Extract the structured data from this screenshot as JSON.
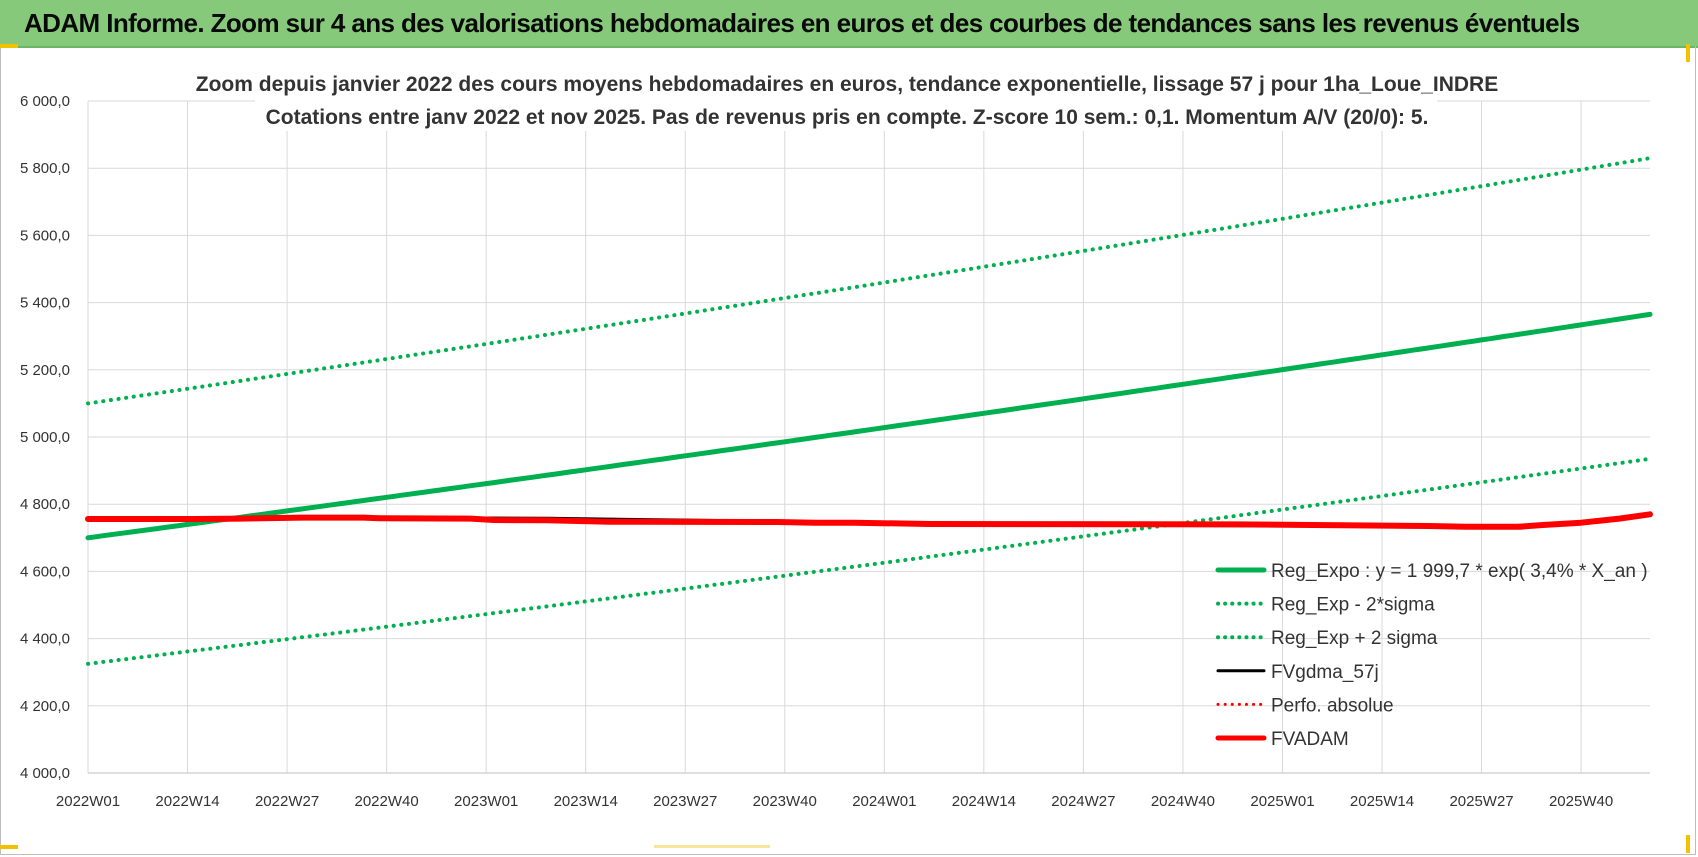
{
  "banner": {
    "title": "ADAM Informe. Zoom sur 4 ans des valorisations hebdomadaires en euros et des courbes de tendances sans les revenus éventuels"
  },
  "chart_data": {
    "type": "line",
    "title_line1": "Zoom depuis janvier 2022 des cours moyens hebdomadaires en euros, tendance exponentielle, lissage 57 j pour 1ha_Loue_INDRE",
    "title_line2": "Cotations entre janv 2022 et nov 2025. Pas de revenus pris en compte. Z-score 10 sem.: 0,1. Momentum A/V (20/0): 5.",
    "x_ticks": [
      "2022W01",
      "2022W14",
      "2022W27",
      "2022W40",
      "2023W01",
      "2023W14",
      "2023W27",
      "2023W40",
      "2024W01",
      "2024W14",
      "2024W27",
      "2024W40",
      "2025W01",
      "2025W14",
      "2025W27",
      "2025W40"
    ],
    "x_tick_step_weeks": 13,
    "n_weeks": 205,
    "ylim": [
      4000,
      6000
    ],
    "y_ticks": [
      4000,
      4200,
      4400,
      4600,
      4800,
      5000,
      5200,
      5400,
      5600,
      5800,
      6000
    ],
    "y_tick_labels": [
      "4 000,0",
      "4 200,0",
      "4 400,0",
      "4 600,0",
      "4 800,0",
      "5 000,0",
      "5 200,0",
      "5 400,0",
      "5 600,0",
      "5 800,0",
      "6 000,0"
    ],
    "grid": true,
    "legend_position": "bottom-right",
    "series": [
      {
        "name": "Reg_Expo : y = 1 999,7 * exp( 3,4% *  X_an )",
        "color": "#00b050",
        "style": "solid",
        "width": 5,
        "start": 4700,
        "end": 5365
      },
      {
        "name": "Reg_Exp - 2*sigma",
        "color": "#00b050",
        "style": "dotted",
        "width": 4,
        "start": 4325,
        "end": 4935
      },
      {
        "name": "Reg_Exp + 2 sigma",
        "color": "#00b050",
        "style": "dotted",
        "width": 4,
        "start": 5100,
        "end": 5830
      },
      {
        "name": "FVgdma_57j",
        "color": "#000000",
        "style": "solid",
        "width": 3,
        "points": [
          [
            0,
            4756
          ],
          [
            20,
            4758
          ],
          [
            40,
            4760
          ],
          [
            60,
            4758
          ],
          [
            80,
            4752
          ],
          [
            100,
            4745
          ],
          [
            120,
            4740
          ],
          [
            140,
            4737
          ],
          [
            160,
            4735
          ],
          [
            170,
            4733
          ],
          [
            180,
            4732
          ],
          [
            185,
            4735
          ],
          [
            190,
            4740
          ],
          [
            195,
            4748
          ],
          [
            200,
            4760
          ],
          [
            204,
            4770
          ]
        ]
      },
      {
        "name": "Perfo. absolue",
        "color": "#ff0000",
        "style": "dotted",
        "width": 3,
        "points": []
      },
      {
        "name": "FVADAM",
        "color": "#ff0000",
        "style": "solid",
        "width": 6,
        "points": [
          [
            0,
            4756
          ],
          [
            14,
            4756
          ],
          [
            20,
            4757
          ],
          [
            28,
            4760
          ],
          [
            36,
            4760
          ],
          [
            38,
            4758
          ],
          [
            50,
            4757
          ],
          [
            53,
            4753
          ],
          [
            60,
            4752
          ],
          [
            68,
            4748
          ],
          [
            90,
            4747
          ],
          [
            95,
            4745
          ],
          [
            100,
            4745
          ],
          [
            110,
            4741
          ],
          [
            150,
            4740
          ],
          [
            160,
            4738
          ],
          [
            175,
            4735
          ],
          [
            180,
            4733
          ],
          [
            187,
            4733
          ],
          [
            190,
            4738
          ],
          [
            195,
            4745
          ],
          [
            200,
            4757
          ],
          [
            204,
            4770
          ]
        ]
      }
    ]
  }
}
